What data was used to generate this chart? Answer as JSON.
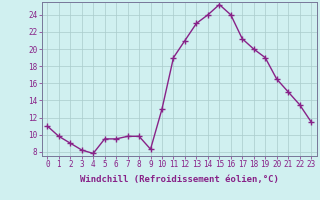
{
  "x": [
    0,
    1,
    2,
    3,
    4,
    5,
    6,
    7,
    8,
    9,
    10,
    11,
    12,
    13,
    14,
    15,
    16,
    17,
    18,
    19,
    20,
    21,
    22,
    23
  ],
  "y": [
    11.0,
    9.8,
    9.0,
    8.2,
    7.8,
    9.5,
    9.5,
    9.8,
    9.8,
    8.3,
    13.0,
    19.0,
    21.0,
    23.0,
    24.0,
    25.2,
    24.0,
    21.2,
    20.0,
    19.0,
    16.5,
    15.0,
    13.5,
    11.5
  ],
  "line_color": "#882288",
  "marker": "+",
  "marker_size": 4,
  "marker_lw": 1.0,
  "bg_color": "#d0f0f0",
  "grid_color": "#aacccc",
  "xlabel": "Windchill (Refroidissement éolien,°C)",
  "xlim": [
    -0.5,
    23.5
  ],
  "ylim": [
    7.5,
    25.5
  ],
  "yticks": [
    8,
    10,
    12,
    14,
    16,
    18,
    20,
    22,
    24
  ],
  "xticks": [
    0,
    1,
    2,
    3,
    4,
    5,
    6,
    7,
    8,
    9,
    10,
    11,
    12,
    13,
    14,
    15,
    16,
    17,
    18,
    19,
    20,
    21,
    22,
    23
  ],
  "xlabel_fontsize": 6.5,
  "tick_fontsize": 5.5,
  "line_width": 1.0,
  "spine_color": "#777799"
}
